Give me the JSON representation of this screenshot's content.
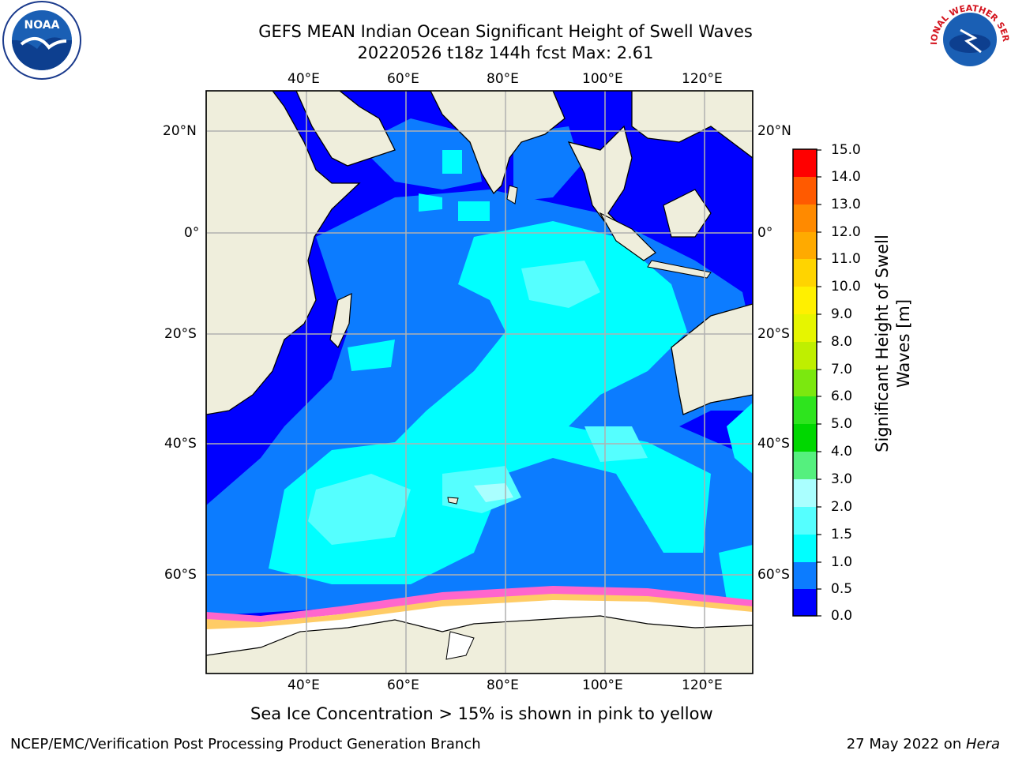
{
  "header": {
    "title_line1": "GEFS MEAN Indian Ocean Significant Height of Swell Waves",
    "title_line2": "20220526 t18z 144h fcst   Max: 2.61"
  },
  "logos": {
    "left": "NOAA",
    "right": "NATIONAL WEATHER SERVICE"
  },
  "map": {
    "lon_labels": [
      "40°E",
      "60°E",
      "80°E",
      "100°E",
      "120°E"
    ],
    "lat_labels": [
      "20°N",
      "0°",
      "20°S",
      "40°S",
      "60°S"
    ],
    "colors": {
      "land": "#efeedc",
      "ice_free": "#ffffff",
      "grid": "#b0b0b0",
      "level_0": "#0000ff",
      "level_1": "#0c7cff",
      "level_2": "#00ffff",
      "level_3": "#55ffff"
    }
  },
  "colorbar": {
    "label_line1": "Significant Height of Swell",
    "label_line2": "Waves [m]",
    "ticks": [
      "15.0",
      "14.0",
      "13.0",
      "12.0",
      "11.0",
      "10.0",
      "9.0",
      "8.0",
      "7.0",
      "6.0",
      "5.0",
      "4.0",
      "3.0",
      "2.0",
      "1.5",
      "1.0",
      "0.5",
      "0.0"
    ],
    "colors_bottom_to_top": [
      "#0000ff",
      "#0c7cff",
      "#00ffff",
      "#55ffff",
      "#aaffff",
      "#55f07e",
      "#00d700",
      "#2ee41e",
      "#7be80f",
      "#bfef00",
      "#e6f500",
      "#fff000",
      "#ffd400",
      "#ffaa00",
      "#ff8a00",
      "#ff6400",
      "#ff3c00",
      "#ff0000"
    ]
  },
  "note": "Sea Ice Concentration > 15% is shown in pink to yellow",
  "footer": {
    "left": "NCEP/EMC/Verification Post Processing Product Generation Branch",
    "right_date": "27 May 2022 on ",
    "right_host": "Hera"
  }
}
